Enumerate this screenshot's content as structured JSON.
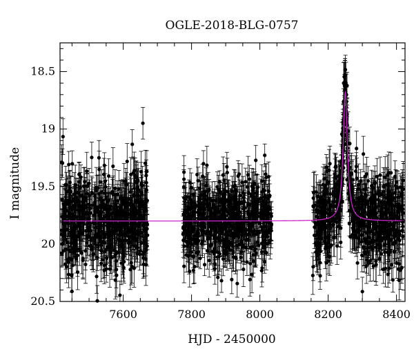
{
  "chart_data": {
    "type": "scatter",
    "title": "OGLE-2018-BLG-0757",
    "xlabel": "HJD - 2450000",
    "ylabel": "I magnitude",
    "xlim": [
      7415,
      8425
    ],
    "ylim": [
      20.5,
      18.25
    ],
    "y_inverted": true,
    "grid": false,
    "x_ticks": [
      7600,
      7800,
      8000,
      8200,
      8400
    ],
    "y_ticks": [
      18.5,
      19,
      19.5,
      20,
      20.5
    ],
    "y_tick_labels": [
      "18.5",
      "19",
      "19.5",
      "20",
      "20.5"
    ],
    "x_tick_labels": [
      "7600",
      "7800",
      "8000",
      "8200",
      "8400"
    ],
    "baseline_magnitude": 19.8,
    "seasons": [
      {
        "x_start": 7420,
        "x_end": 7672,
        "mean_mag": 19.85,
        "scatter": 0.35,
        "typical_error": 0.15
      },
      {
        "x_start": 7775,
        "x_end": 8035,
        "mean_mag": 19.82,
        "scatter": 0.3,
        "typical_error": 0.13
      },
      {
        "x_start": 8155,
        "x_end": 8420,
        "mean_mag": 19.85,
        "scatter": 0.32,
        "typical_error": 0.14
      }
    ],
    "event": {
      "t0": 8250,
      "peak_mag": 18.68,
      "tE": 7.5
    },
    "series": [
      {
        "color": "#000000",
        "marker": "filled-circle-with-errorbars"
      },
      {
        "color": "#cc22cc",
        "marker": "line"
      }
    ]
  }
}
